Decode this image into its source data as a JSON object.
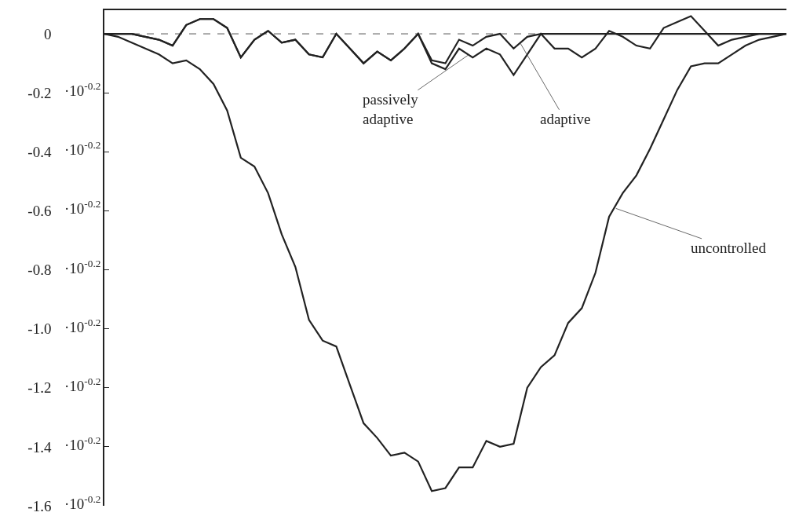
{
  "chart_data": {
    "type": "line",
    "tick_labels": "y",
    "grid": false,
    "marker": "none",
    "line_style": "solid",
    "categories": [
      null,
      null,
      null,
      null,
      null,
      null,
      null,
      null,
      null,
      null,
      null,
      null,
      null,
      null,
      null,
      null,
      null,
      null,
      null,
      null,
      null,
      null,
      null,
      null,
      null,
      null,
      null,
      null,
      null,
      null,
      null,
      null,
      null,
      null,
      null,
      null,
      null,
      null,
      null,
      null,
      null,
      null,
      null,
      null,
      null,
      null,
      null,
      null,
      null,
      null,
      null
    ],
    "ylim": [
      -1.6,
      0.08
    ],
    "yticks": [
      0,
      {
        "value": -0.2,
        "label": "-0.2"
      },
      {
        "value": -0.4,
        "label": "-0.4"
      },
      {
        "value": -0.6,
        "label": "-0.6"
      },
      {
        "value": -0.8,
        "label": "-0.8"
      },
      {
        "value": -1.0,
        "label": "-1.0"
      },
      {
        "value": -1.2,
        "label": "-1.2"
      },
      {
        "value": -1.4,
        "label": "-1.4"
      },
      {
        "value": -1.6,
        "label": "-1.6"
      }
    ],
    "ref_lines": [
      {
        "axis": "y",
        "value": 0,
        "color": "#555555",
        "line_style": "dashed"
      }
    ],
    "series": [
      {
        "color": "#222222",
        "values": [
          0,
          -0.01,
          -0.03,
          -0.05,
          -0.07,
          -0.1,
          -0.09,
          -0.12,
          -0.17,
          -0.26,
          -0.42,
          -0.45,
          -0.54,
          -0.68,
          -0.79,
          -0.97,
          -1.04,
          -1.06,
          -1.19,
          -1.32,
          -1.37,
          -1.43,
          -1.42,
          -1.45,
          -1.55,
          -1.54,
          -1.47,
          -1.47,
          -1.38,
          -1.4,
          -1.39,
          -1.2,
          -1.13,
          -1.09,
          -0.98,
          -0.93,
          -0.81,
          -0.62,
          -0.54,
          -0.48,
          -0.39,
          -0.29,
          -0.19,
          -0.11,
          -0.1,
          -0.1,
          -0.07,
          -0.04,
          -0.02,
          -0.01,
          0
        ]
      },
      {
        "color": "#222222",
        "values": [
          0,
          0,
          0,
          -0.01,
          -0.02,
          -0.04,
          0.03,
          0.05,
          0.05,
          0.02,
          -0.08,
          -0.02,
          0.01,
          -0.03,
          -0.02,
          -0.07,
          -0.08,
          0,
          -0.05,
          -0.1,
          -0.06,
          -0.09,
          -0.05,
          0,
          -0.1,
          -0.12,
          -0.05,
          -0.08,
          -0.05,
          -0.07,
          -0.14,
          -0.07,
          0,
          -0.05,
          -0.05,
          -0.08,
          -0.05,
          0.01,
          -0.01,
          -0.04,
          -0.05,
          0.02,
          0.04,
          0.06,
          0.01,
          -0.04,
          -0.02,
          -0.01,
          0,
          0,
          0
        ]
      },
      {
        "color": "#222222",
        "values": [
          0,
          0,
          0,
          -0.01,
          -0.02,
          -0.04,
          0.03,
          0.05,
          0.05,
          0.02,
          -0.08,
          -0.02,
          0.01,
          -0.03,
          -0.02,
          -0.07,
          -0.08,
          0,
          -0.05,
          -0.1,
          -0.06,
          -0.09,
          -0.05,
          0,
          -0.09,
          -0.1,
          -0.02,
          -0.04,
          -0.01,
          0,
          -0.05,
          -0.01,
          0,
          0,
          0,
          0,
          0,
          0,
          0,
          0,
          0,
          0,
          0,
          0,
          0,
          0,
          0,
          0,
          0,
          0,
          0
        ]
      }
    ],
    "annotations": [
      "passively adaptive",
      "adaptive",
      "uncontrolled",
      "·10$^{-0.2}$",
      "·10$^{-0.2}$",
      "·10$^{-0.2}$",
      "·10$^{-0.2}$",
      "·10$^{-0.2}$",
      "·10$^{-0.2}$",
      "·10$^{-0.2}$",
      "·10$^{-0.2}$"
    ]
  }
}
